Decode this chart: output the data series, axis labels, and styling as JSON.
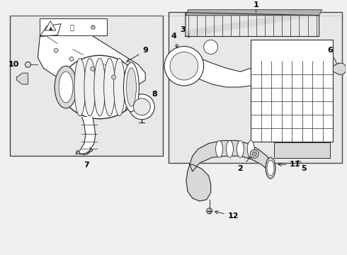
{
  "bg_color": "#f0f0f0",
  "line_color": "#2a2a2a",
  "border_color": "#555555",
  "label_color": "#000000",
  "fig_width": 4.9,
  "fig_height": 3.6,
  "dpi": 100,
  "white": "#ffffff",
  "light_gray": "#d8d8d8",
  "mid_gray": "#b0b0b0"
}
